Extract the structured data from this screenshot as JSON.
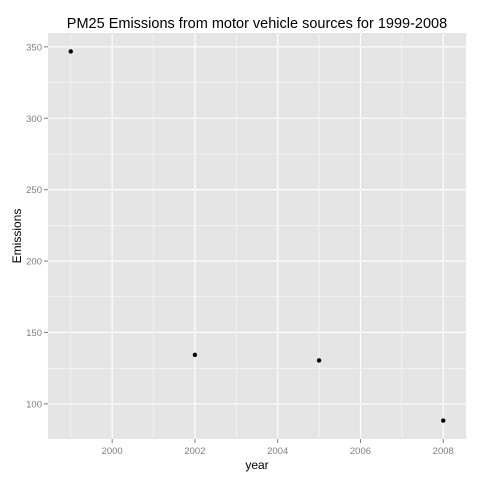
{
  "chart_data": {
    "type": "scatter",
    "title": "PM25 Emissions from motor vehicle sources for 1999-2008",
    "xlabel": "year",
    "ylabel": "Emissions",
    "x": [
      1999,
      2002,
      2005,
      2008
    ],
    "y": [
      346.8,
      134.3,
      130.4,
      88.3
    ],
    "xlim": [
      1998.45,
      2008.55
    ],
    "ylim": [
      75.4,
      359.7
    ],
    "xticks": [
      2000,
      2002,
      2004,
      2006,
      2008
    ],
    "yticks": [
      100,
      150,
      200,
      250,
      300,
      350
    ],
    "xtick_labels": [
      "2000",
      "2002",
      "2004",
      "2006",
      "2008"
    ],
    "ytick_labels": [
      "100",
      "150",
      "200",
      "250",
      "300",
      "350"
    ],
    "grid": true,
    "panel_color": "#e5e5e5",
    "grid_color": "#ffffff",
    "point_color": "#000000"
  }
}
